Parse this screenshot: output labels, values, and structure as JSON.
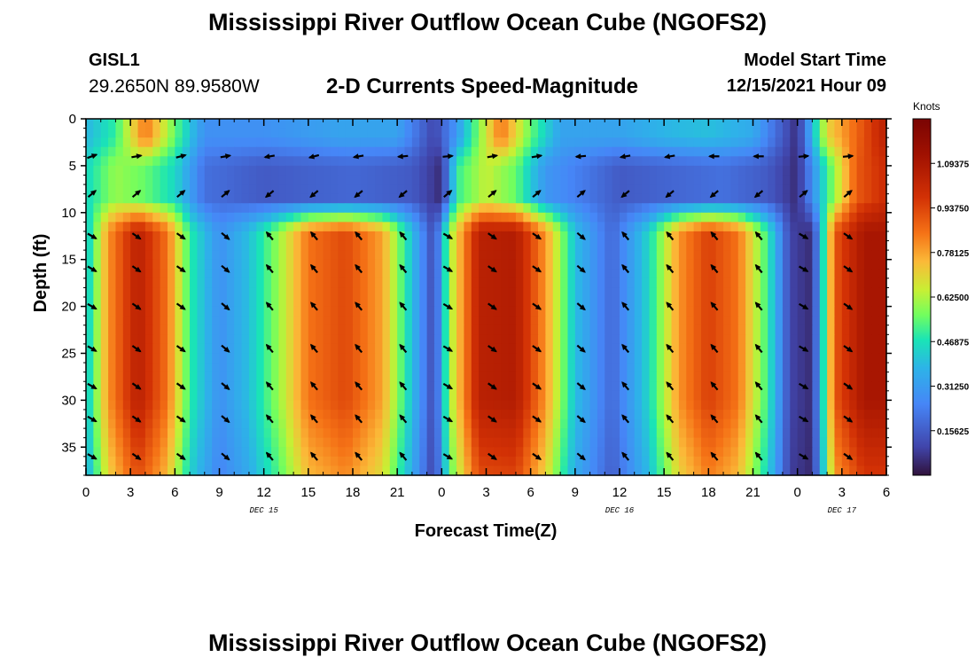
{
  "header": {
    "title": "Mississippi River Outflow Ocean Cube (NGOFS2)",
    "station_name": "GISL1",
    "station_coords": "29.2650N  89.9580W",
    "plot_title": "2-D Currents Speed-Magnitude",
    "start_label": "Model Start Time",
    "start_value": "12/15/2021 Hour 09"
  },
  "footer": {
    "title": "Mississippi River Outflow Ocean Cube (NGOFS2)"
  },
  "chart_data": {
    "type": "heatmap",
    "title": "2-D Currents Speed-Magnitude",
    "xlabel": "Forecast Time(Z)",
    "ylabel": "Depth (ft)",
    "xlim": [
      0,
      54
    ],
    "ylim": [
      0,
      38
    ],
    "y_inverted": true,
    "x_tick_values": [
      0,
      3,
      6,
      9,
      12,
      15,
      18,
      21,
      24,
      27,
      30,
      33,
      36,
      39,
      42,
      45,
      48,
      51,
      54
    ],
    "x_tick_labels": [
      "0",
      "3",
      "6",
      "9",
      "12",
      "15",
      "18",
      "21",
      "0",
      "3",
      "6",
      "9",
      "12",
      "15",
      "18",
      "21",
      "0",
      "3",
      "6"
    ],
    "date_labels": [
      {
        "x": 12,
        "text": "DEC 15"
      },
      {
        "x": 36,
        "text": "DEC 16"
      },
      {
        "x": 51,
        "text": "DEC 17"
      }
    ],
    "y_ticks": [
      0,
      5,
      10,
      15,
      20,
      25,
      30,
      35
    ],
    "colorbar": {
      "label": "Knots",
      "min": 0,
      "max": 1.25,
      "tick_values": [
        0.15625,
        0.3125,
        0.46875,
        0.625,
        0.78125,
        0.9375,
        1.09375
      ],
      "tick_labels": [
        "0.15625",
        "0.31250",
        "0.46875",
        "0.62500",
        "0.78125",
        "0.93750",
        "1.09375"
      ]
    },
    "surface_layer_speed_knots": [
      {
        "x": 0,
        "v": 0.38
      },
      {
        "x": 2,
        "v": 0.5
      },
      {
        "x": 4,
        "v": 0.85
      },
      {
        "x": 6,
        "v": 0.55
      },
      {
        "x": 8,
        "v": 0.28
      },
      {
        "x": 12,
        "v": 0.28
      },
      {
        "x": 17,
        "v": 0.33
      },
      {
        "x": 21,
        "v": 0.33
      },
      {
        "x": 23.5,
        "v": 0.1
      },
      {
        "x": 25,
        "v": 0.3
      },
      {
        "x": 28,
        "v": 0.85
      },
      {
        "x": 30,
        "v": 0.55
      },
      {
        "x": 32,
        "v": 0.33
      },
      {
        "x": 36,
        "v": 0.33
      },
      {
        "x": 39,
        "v": 0.38
      },
      {
        "x": 42,
        "v": 0.4
      },
      {
        "x": 45,
        "v": 0.35
      },
      {
        "x": 48,
        "v": 0.05
      },
      {
        "x": 50,
        "v": 0.7
      },
      {
        "x": 54,
        "v": 1.05
      }
    ],
    "mixed_layer_speed_knots": [
      {
        "x": 0,
        "v": 0.45
      },
      {
        "x": 2,
        "v": 0.6
      },
      {
        "x": 4,
        "v": 0.55
      },
      {
        "x": 6,
        "v": 0.45
      },
      {
        "x": 8,
        "v": 0.2
      },
      {
        "x": 12,
        "v": 0.15
      },
      {
        "x": 18,
        "v": 0.18
      },
      {
        "x": 22,
        "v": 0.15
      },
      {
        "x": 24,
        "v": 0.05
      },
      {
        "x": 25,
        "v": 0.5
      },
      {
        "x": 27,
        "v": 0.65
      },
      {
        "x": 29,
        "v": 0.55
      },
      {
        "x": 31,
        "v": 0.3
      },
      {
        "x": 36,
        "v": 0.15
      },
      {
        "x": 40,
        "v": 0.18
      },
      {
        "x": 43,
        "v": 0.2
      },
      {
        "x": 46,
        "v": 0.15
      },
      {
        "x": 48,
        "v": 0.05
      },
      {
        "x": 50,
        "v": 0.5
      },
      {
        "x": 52,
        "v": 0.9
      },
      {
        "x": 54,
        "v": 1.0
      }
    ],
    "bottom_layer_speed_knots": [
      {
        "x": 0,
        "v": 0.4
      },
      {
        "x": 1.5,
        "v": 0.8
      },
      {
        "x": 3.5,
        "v": 1.05
      },
      {
        "x": 5.5,
        "v": 0.85
      },
      {
        "x": 7,
        "v": 0.5
      },
      {
        "x": 9,
        "v": 0.28
      },
      {
        "x": 11,
        "v": 0.4
      },
      {
        "x": 13,
        "v": 0.6
      },
      {
        "x": 15,
        "v": 0.85
      },
      {
        "x": 17.5,
        "v": 0.93
      },
      {
        "x": 20,
        "v": 0.78
      },
      {
        "x": 22,
        "v": 0.4
      },
      {
        "x": 23.5,
        "v": 0.1
      },
      {
        "x": 24.5,
        "v": 0.6
      },
      {
        "x": 26.5,
        "v": 1.05
      },
      {
        "x": 29,
        "v": 1.07
      },
      {
        "x": 31,
        "v": 0.8
      },
      {
        "x": 33,
        "v": 0.4
      },
      {
        "x": 35.5,
        "v": 0.18
      },
      {
        "x": 38,
        "v": 0.45
      },
      {
        "x": 40,
        "v": 0.8
      },
      {
        "x": 42,
        "v": 0.95
      },
      {
        "x": 44,
        "v": 0.85
      },
      {
        "x": 46,
        "v": 0.5
      },
      {
        "x": 47.5,
        "v": 0.1
      },
      {
        "x": 49,
        "v": 0.05
      },
      {
        "x": 50.5,
        "v": 0.9
      },
      {
        "x": 52.5,
        "v": 1.1
      },
      {
        "x": 54,
        "v": 1.1
      }
    ],
    "vectors": {
      "x_times": [
        0,
        3,
        6,
        9,
        12,
        15,
        18,
        21,
        24,
        27,
        30,
        33,
        36,
        39,
        42,
        45,
        48,
        51
      ],
      "depths_ft": [
        4,
        8,
        12.5,
        16,
        20,
        24.5,
        28.5,
        32,
        36
      ],
      "surface_angles_deg": [
        20,
        10,
        15,
        10,
        190,
        195,
        190,
        185,
        5,
        10,
        10,
        185,
        190,
        190,
        180,
        180,
        5,
        5
      ],
      "subsurface_angles_deg": [
        40,
        40,
        40,
        40,
        220,
        220,
        220,
        220,
        40,
        40,
        40,
        40,
        220,
        220,
        220,
        220,
        40,
        40
      ],
      "deep_angles_deg": [
        -30,
        -35,
        -35,
        -40,
        130,
        130,
        130,
        130,
        -30,
        -35,
        -35,
        -40,
        130,
        130,
        130,
        130,
        -30,
        -35
      ]
    }
  }
}
